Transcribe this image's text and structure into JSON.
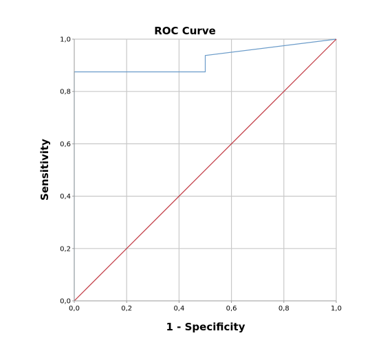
{
  "chart_data": {
    "type": "line",
    "title": "ROC Curve",
    "xlabel": "1 - Specificity",
    "ylabel": "Sensitivity",
    "xlim": [
      0,
      1
    ],
    "ylim": [
      0,
      1
    ],
    "x_ticks": [
      "0,0",
      "0,2",
      "0,4",
      "0,6",
      "0,8",
      "1,0"
    ],
    "y_ticks": [
      "0,0",
      "0,2",
      "0,4",
      "0,6",
      "0,8",
      "1,0"
    ],
    "grid": true,
    "legend": "none",
    "series": [
      {
        "color": "#6a9bc9",
        "points": [
          [
            0,
            0
          ],
          [
            0,
            0.875
          ],
          [
            0.5,
            0.875
          ],
          [
            0.5,
            0.9375
          ],
          [
            1,
            1
          ]
        ]
      },
      {
        "color": "#c0363f",
        "points": [
          [
            0,
            0
          ],
          [
            1,
            1
          ]
        ]
      }
    ],
    "colors": {
      "grid": "#c8c8c8",
      "axis": "#999999"
    }
  }
}
